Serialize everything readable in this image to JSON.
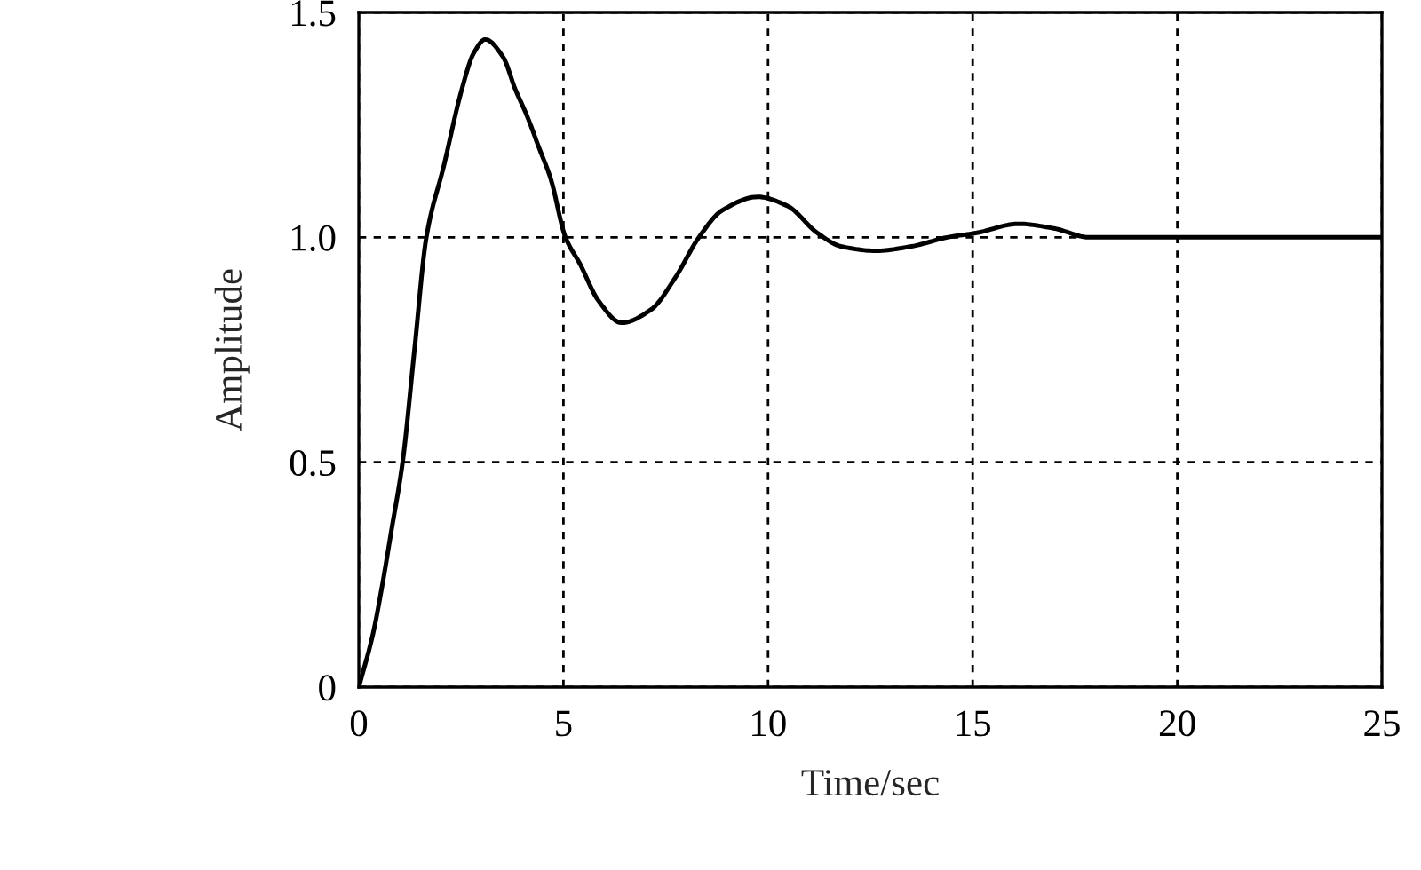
{
  "chart_data": {
    "type": "line",
    "xlabel": "Time/sec",
    "ylabel": "Amplitude",
    "x": [
      0,
      0.35,
      0.56,
      0.8,
      1.07,
      1.36,
      1.65,
      2.08,
      2.52,
      2.81,
      3.09,
      3.53,
      3.82,
      4.11,
      4.4,
      4.69,
      5.05,
      5.41,
      5.85,
      6.42,
      7.15,
      7.73,
      8.31,
      8.88,
      9.75,
      10.47,
      11.2,
      11.78,
      12.64,
      13.51,
      14.38,
      15.1,
      16.12,
      16.98,
      17.85,
      20,
      25
    ],
    "series": [
      {
        "color": "#000000",
        "values": [
          0,
          0.12,
          0.22,
          0.35,
          0.5,
          0.75,
          1.0,
          1.16,
          1.33,
          1.41,
          1.44,
          1.4,
          1.33,
          1.27,
          1.2,
          1.13,
          1.0,
          0.94,
          0.86,
          0.81,
          0.84,
          0.91,
          1.0,
          1.06,
          1.09,
          1.07,
          1.01,
          0.98,
          0.97,
          0.98,
          1.0,
          1.01,
          1.03,
          1.02,
          1.0,
          1.0,
          1.0
        ]
      }
    ],
    "xlim": [
      0,
      25
    ],
    "ylim": [
      0,
      1.5
    ],
    "xticks": [
      0,
      5,
      10,
      15,
      20,
      25
    ],
    "yticks": [
      0,
      0.5,
      {
        "value": 1,
        "label": "1.0"
      },
      1.5
    ],
    "grid": true,
    "line_style": "solid"
  }
}
